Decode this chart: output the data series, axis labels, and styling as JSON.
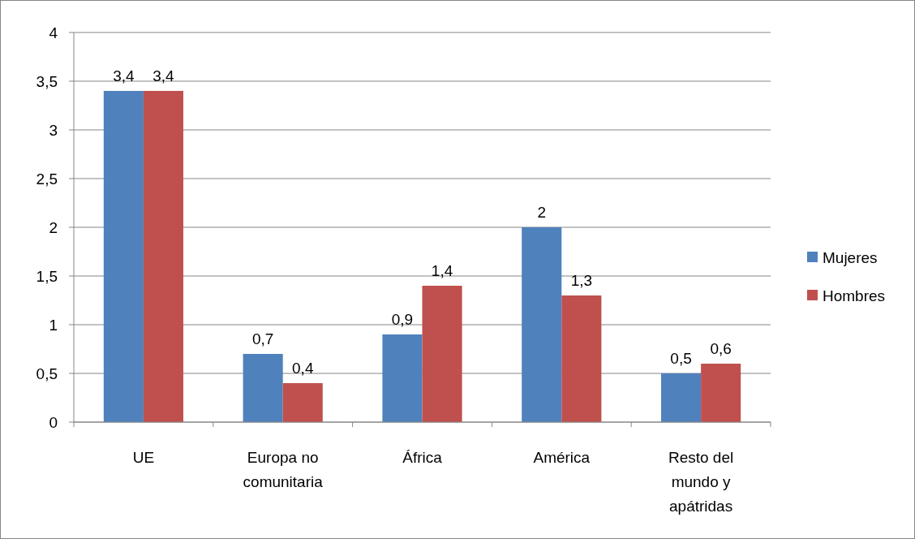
{
  "chart_data": {
    "type": "bar",
    "categories": [
      "UE",
      "Europa no comunitaria",
      "África",
      "América",
      "Resto del mundo y apátridas"
    ],
    "series": [
      {
        "name": "Mujeres",
        "color": "#4f81bd",
        "values": [
          3.4,
          0.7,
          0.9,
          2,
          0.5
        ],
        "value_labels": [
          "3,4",
          "0,7",
          "0,9",
          "2",
          "0,5"
        ]
      },
      {
        "name": "Hombres",
        "color": "#c0504d",
        "values": [
          3.4,
          0.4,
          1.4,
          1.3,
          0.6
        ],
        "value_labels": [
          "3,4",
          "0,4",
          "1,4",
          "1,3",
          "0,6"
        ]
      }
    ],
    "ylim": [
      0,
      4
    ],
    "yticks": [
      0,
      {
        "value": 0.5,
        "label": "0,5"
      },
      1,
      {
        "value": 1.5,
        "label": "1,5"
      },
      2,
      {
        "value": 2.5,
        "label": "2,5"
      },
      3,
      {
        "value": 3.5,
        "label": "3,5"
      },
      4
    ],
    "grid": "y",
    "legend": "right"
  }
}
